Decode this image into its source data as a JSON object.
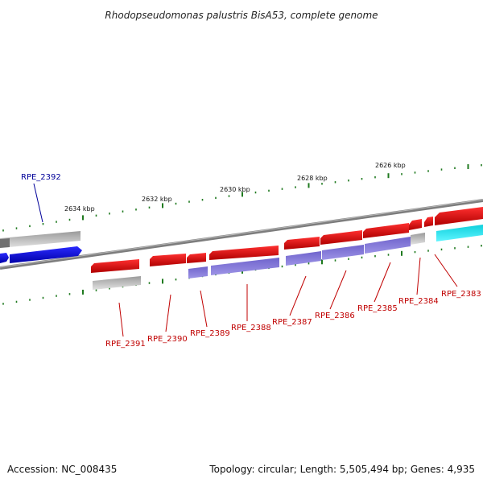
{
  "header": {
    "title": "Rhodopseudomonas palustris BisA53, complete genome"
  },
  "footer": {
    "accession": "Accession: NC_008435",
    "summary": "Topology: circular; Length: 5,505,494 bp; Genes: 4,935"
  },
  "colors": {
    "forward_cds": "#e00000",
    "reverse_cds": "#0000ee",
    "forward_other": "#c0c0c0",
    "reverse_other": "#7b6fd6",
    "cyan_feature": "#19e6f0",
    "backbone": "#808080",
    "tick": "#1f7a1f",
    "forward_label": "#c00000",
    "reverse_label": "#000099"
  },
  "scale": {
    "ticks": [
      {
        "label": "2634 kbp"
      },
      {
        "label": "2632 kbp"
      },
      {
        "label": "2630 kbp"
      },
      {
        "label": "2628 kbp"
      },
      {
        "label": "2626 kbp"
      }
    ]
  },
  "genes": [
    {
      "label": "RPE_2392",
      "strand": "reverse"
    },
    {
      "label": "RPE_2391",
      "strand": "forward"
    },
    {
      "label": "RPE_2390",
      "strand": "forward"
    },
    {
      "label": "RPE_2389",
      "strand": "forward"
    },
    {
      "label": "RPE_2388",
      "strand": "forward"
    },
    {
      "label": "RPE_2387",
      "strand": "forward"
    },
    {
      "label": "RPE_2386",
      "strand": "forward"
    },
    {
      "label": "RPE_2385",
      "strand": "forward"
    },
    {
      "label": "RPE_2384",
      "strand": "forward"
    },
    {
      "label": "RPE_2383",
      "strand": "forward"
    }
  ]
}
